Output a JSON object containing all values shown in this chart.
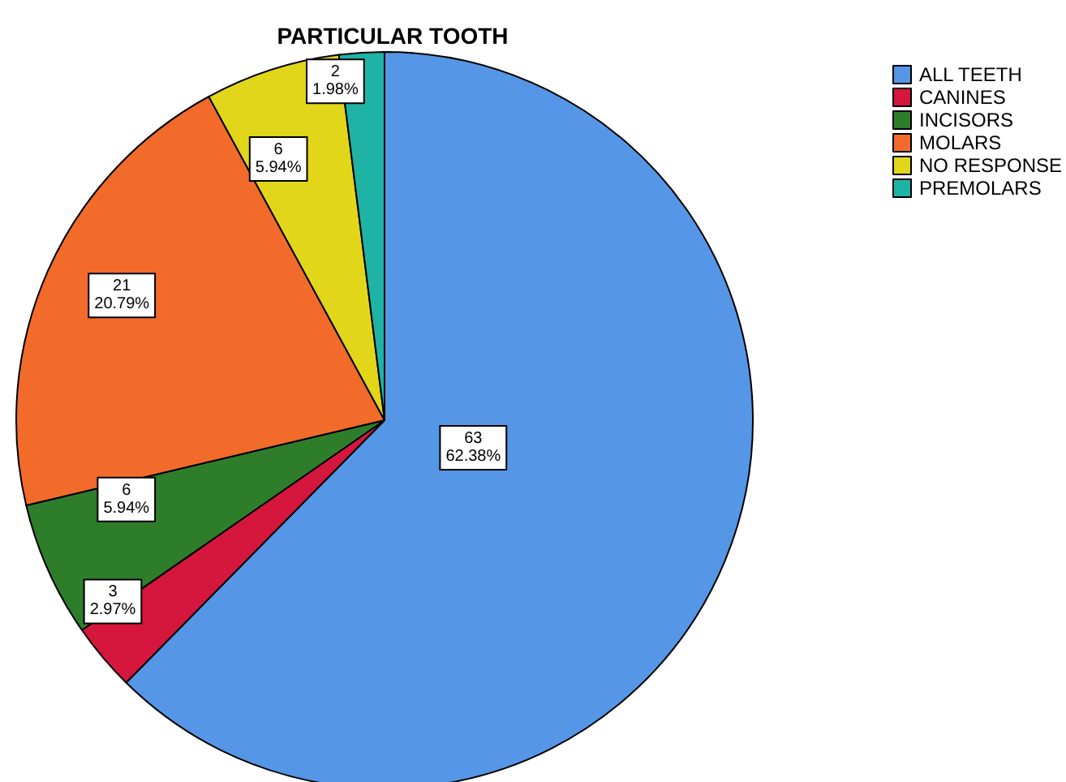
{
  "chart_data": {
    "type": "pie",
    "title": "PARTICULAR TOOTH",
    "categories": [
      "ALL TEETH",
      "CANINES",
      "INCISORS",
      "MOLARS",
      "NO RESPONSE",
      "PREMOLARS"
    ],
    "values": [
      63,
      3,
      6,
      21,
      6,
      2
    ],
    "colors": [
      "#5596e6",
      "#d5163d",
      "#2e7d2b",
      "#f26b2a",
      "#e2d61b",
      "#1fb3a5"
    ],
    "value_labels": [
      "63\n62.38%",
      "3\n2.97%",
      "6\n5.94%",
      "21\n20.79%",
      "6\n5.94%",
      "2\n1.98%"
    ],
    "legend": "top right"
  }
}
